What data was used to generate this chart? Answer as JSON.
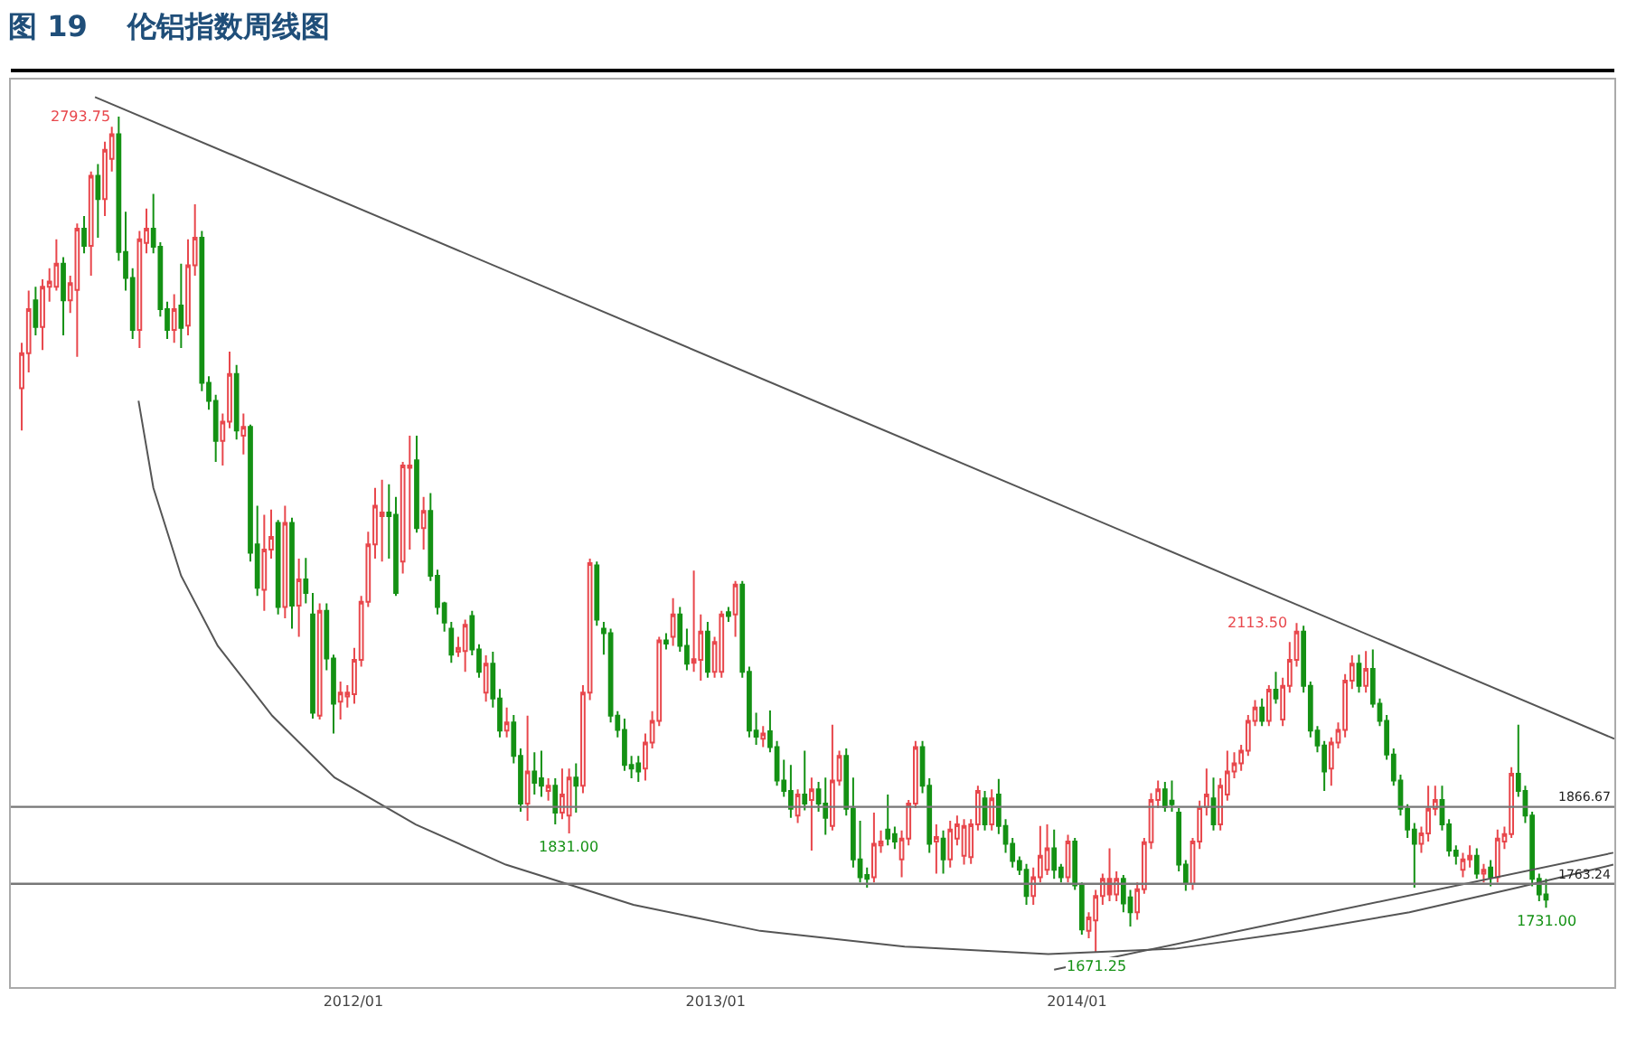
{
  "chart_data": {
    "type": "candlestick",
    "title": "图 19    伦铝指数周线图",
    "x": [
      "2011-01-31",
      "2011-02-07",
      "2011-02-14",
      "2011-02-21",
      "2011-02-28",
      "2011-03-07",
      "2011-03-14",
      "2011-03-21",
      "2011-03-28",
      "2011-04-04",
      "2011-04-11",
      "2011-04-18",
      "2011-04-25",
      "2011-05-02",
      "2011-05-09",
      "2011-05-16",
      "2011-05-23",
      "2011-05-30",
      "2011-06-06",
      "2011-06-13",
      "2011-06-20",
      "2011-06-27",
      "2011-07-04",
      "2011-07-11",
      "2011-07-18",
      "2011-07-25",
      "2011-08-01",
      "2011-08-08",
      "2011-08-15",
      "2011-08-22",
      "2011-08-29",
      "2011-09-05",
      "2011-09-12",
      "2011-09-19",
      "2011-09-26",
      "2011-10-03",
      "2011-10-10",
      "2011-10-17",
      "2011-10-24",
      "2011-10-31",
      "2011-11-07",
      "2011-11-14",
      "2011-11-21",
      "2011-11-28",
      "2011-12-05",
      "2011-12-12",
      "2011-12-19",
      "2011-12-26",
      "2012-01-02",
      "2012-01-09",
      "2012-01-16",
      "2012-01-23",
      "2012-01-30",
      "2012-02-06",
      "2012-02-13",
      "2012-02-20",
      "2012-02-27",
      "2012-03-05",
      "2012-03-12",
      "2012-03-19",
      "2012-03-26",
      "2012-04-02",
      "2012-04-09",
      "2012-04-16",
      "2012-04-23",
      "2012-04-30",
      "2012-05-07",
      "2012-05-14",
      "2012-05-21",
      "2012-05-28",
      "2012-06-04",
      "2012-06-11",
      "2012-06-18",
      "2012-06-25",
      "2012-07-02",
      "2012-07-09",
      "2012-07-16",
      "2012-07-23",
      "2012-07-30",
      "2012-08-06",
      "2012-08-13",
      "2012-08-20",
      "2012-08-27",
      "2012-09-03",
      "2012-09-10",
      "2012-09-17",
      "2012-09-24",
      "2012-10-01",
      "2012-10-08",
      "2012-10-15",
      "2012-10-22",
      "2012-10-29",
      "2012-11-05",
      "2012-11-12",
      "2012-11-19",
      "2012-11-26",
      "2012-12-03",
      "2012-12-10",
      "2012-12-17",
      "2012-12-24",
      "2012-12-31",
      "2013-01-07",
      "2013-01-14",
      "2013-01-21",
      "2013-01-28",
      "2013-02-04",
      "2013-02-11",
      "2013-02-18",
      "2013-02-25",
      "2013-03-04",
      "2013-03-11",
      "2013-03-18",
      "2013-03-25",
      "2013-04-01",
      "2013-04-08",
      "2013-04-15",
      "2013-04-22",
      "2013-04-29",
      "2013-05-06",
      "2013-05-13",
      "2013-05-20",
      "2013-05-27",
      "2013-06-03",
      "2013-06-10",
      "2013-06-17",
      "2013-06-24",
      "2013-07-01",
      "2013-07-08",
      "2013-07-15",
      "2013-07-22",
      "2013-07-29",
      "2013-08-05",
      "2013-08-12",
      "2013-08-19",
      "2013-08-26",
      "2013-09-02",
      "2013-09-09",
      "2013-09-16",
      "2013-09-23",
      "2013-09-30",
      "2013-10-07",
      "2013-10-14",
      "2013-10-21",
      "2013-10-28",
      "2013-11-04",
      "2013-11-11",
      "2013-11-18",
      "2013-11-25",
      "2013-12-02",
      "2013-12-09",
      "2013-12-16",
      "2013-12-23",
      "2013-12-30",
      "2014-01-06",
      "2014-01-13",
      "2014-01-20",
      "2014-01-27",
      "2014-02-03",
      "2014-02-10",
      "2014-02-17",
      "2014-02-24",
      "2014-03-03",
      "2014-03-10",
      "2014-03-17",
      "2014-03-24",
      "2014-03-31",
      "2014-04-07",
      "2014-04-14",
      "2014-04-21",
      "2014-04-28",
      "2014-05-05",
      "2014-05-12",
      "2014-05-19",
      "2014-05-26",
      "2014-06-02",
      "2014-06-09",
      "2014-06-16",
      "2014-06-23",
      "2014-06-30",
      "2014-07-07",
      "2014-07-14",
      "2014-07-21",
      "2014-07-28",
      "2014-08-04",
      "2014-08-11",
      "2014-08-18",
      "2014-08-25",
      "2014-09-01",
      "2014-09-08",
      "2014-09-15",
      "2014-09-22",
      "2014-09-29",
      "2014-10-06",
      "2014-10-13",
      "2014-10-20",
      "2014-10-27",
      "2014-11-03",
      "2014-11-10",
      "2014-11-17",
      "2014-11-24",
      "2014-12-01",
      "2014-12-08",
      "2014-12-15",
      "2014-12-22",
      "2014-12-29",
      "2015-01-05",
      "2015-01-12",
      "2015-01-19",
      "2015-01-26",
      "2015-02-02",
      "2015-02-09",
      "2015-02-16",
      "2015-02-23",
      "2015-03-02",
      "2015-03-09",
      "2015-03-16",
      "2015-03-23",
      "2015-03-30",
      "2015-04-06",
      "2015-04-13",
      "2015-04-20"
    ],
    "ohlc": [
      [
        2429,
        2490,
        2372,
        2476
      ],
      [
        2476,
        2560,
        2450,
        2535
      ],
      [
        2547,
        2565,
        2500,
        2511
      ],
      [
        2511,
        2575,
        2480,
        2565
      ],
      [
        2565,
        2590,
        2545,
        2572
      ],
      [
        2565,
        2629,
        2560,
        2596
      ],
      [
        2596,
        2605,
        2500,
        2547
      ],
      [
        2547,
        2580,
        2530,
        2570
      ],
      [
        2561,
        2650,
        2471,
        2643
      ],
      [
        2643,
        2660,
        2610,
        2620
      ],
      [
        2620,
        2720,
        2580,
        2714
      ],
      [
        2714,
        2730,
        2631,
        2683
      ],
      [
        2683,
        2760,
        2660,
        2749
      ],
      [
        2737,
        2780,
        2720,
        2770
      ],
      [
        2770,
        2793.75,
        2600,
        2612
      ],
      [
        2612,
        2666,
        2560,
        2577
      ],
      [
        2577,
        2590,
        2495,
        2507
      ],
      [
        2507,
        2640,
        2483,
        2629
      ],
      [
        2624,
        2670,
        2610,
        2643
      ],
      [
        2643,
        2690,
        2610,
        2619
      ],
      [
        2619,
        2625,
        2525,
        2535
      ],
      [
        2535,
        2545,
        2495,
        2507
      ],
      [
        2507,
        2555,
        2490,
        2535
      ],
      [
        2540,
        2596,
        2483,
        2510
      ],
      [
        2513,
        2629,
        2500,
        2594
      ],
      [
        2594,
        2676,
        2580,
        2631
      ],
      [
        2631,
        2640,
        2425,
        2436
      ],
      [
        2436,
        2445,
        2400,
        2412
      ],
      [
        2412,
        2420,
        2330,
        2358
      ],
      [
        2358,
        2395,
        2325,
        2384
      ],
      [
        2384,
        2478,
        2375,
        2448
      ],
      [
        2448,
        2460,
        2360,
        2372
      ],
      [
        2365,
        2395,
        2340,
        2377
      ],
      [
        2377,
        2380,
        2196,
        2208
      ],
      [
        2219,
        2271,
        2150,
        2161
      ],
      [
        2158,
        2259,
        2130,
        2212
      ],
      [
        2212,
        2266,
        2200,
        2229
      ],
      [
        2248,
        2252,
        2125,
        2135
      ],
      [
        2135,
        2271,
        2120,
        2248
      ],
      [
        2248,
        2255,
        2106,
        2137
      ],
      [
        2137,
        2200,
        2095,
        2172
      ],
      [
        2172,
        2201,
        2140,
        2154
      ],
      [
        2125,
        2154,
        1985,
        1993
      ],
      [
        1989,
        2140,
        1984,
        2130
      ],
      [
        2130,
        2140,
        2050,
        2066
      ],
      [
        2066,
        2071,
        1965,
        2005
      ],
      [
        2008,
        2035,
        1984,
        2020
      ],
      [
        2015,
        2030,
        2000,
        2020
      ],
      [
        2018,
        2080,
        2005,
        2064
      ],
      [
        2064,
        2150,
        2055,
        2142
      ],
      [
        2142,
        2236,
        2135,
        2219
      ],
      [
        2219,
        2295,
        2200,
        2271
      ],
      [
        2257,
        2306,
        2196,
        2262
      ],
      [
        2262,
        2300,
        2200,
        2257
      ],
      [
        2259,
        2283,
        2150,
        2154
      ],
      [
        2196,
        2330,
        2180,
        2325
      ],
      [
        2322,
        2365,
        2212,
        2325
      ],
      [
        2332,
        2365,
        2235,
        2241
      ],
      [
        2241,
        2283,
        2212,
        2264
      ],
      [
        2264,
        2288,
        2170,
        2177
      ],
      [
        2177,
        2185,
        2125,
        2135
      ],
      [
        2140,
        2142,
        2102,
        2114
      ],
      [
        2106,
        2115,
        2060,
        2071
      ],
      [
        2075,
        2095,
        2068,
        2080
      ],
      [
        2076,
        2118,
        2048,
        2111
      ],
      [
        2123,
        2130,
        2070,
        2078
      ],
      [
        2078,
        2085,
        2040,
        2048
      ],
      [
        2020,
        2070,
        2008,
        2059
      ],
      [
        2059,
        2075,
        2000,
        2012
      ],
      [
        2012,
        2025,
        1960,
        1969
      ],
      [
        1969,
        2000,
        1960,
        1980
      ],
      [
        1980,
        1990,
        1925,
        1935
      ],
      [
        1935,
        1945,
        1860,
        1871
      ],
      [
        1871,
        1989,
        1848,
        1914
      ],
      [
        1914,
        1940,
        1883,
        1899
      ],
      [
        1905,
        1942,
        1880,
        1895
      ],
      [
        1888,
        1905,
        1875,
        1895
      ],
      [
        1895,
        1905,
        1843,
        1859
      ],
      [
        1859,
        1918,
        1850,
        1883
      ],
      [
        1855,
        1918,
        1831,
        1906
      ],
      [
        1906,
        1925,
        1859,
        1895
      ],
      [
        1895,
        2030,
        1885,
        2020
      ],
      [
        2020,
        2200,
        2010,
        2194
      ],
      [
        2191,
        2196,
        2110,
        2118
      ],
      [
        2106,
        2115,
        2071,
        2100
      ],
      [
        2100,
        2106,
        1980,
        1989
      ],
      [
        1989,
        1995,
        1960,
        1970
      ],
      [
        1970,
        1985,
        1915,
        1923
      ],
      [
        1923,
        1935,
        1905,
        1918
      ],
      [
        1925,
        1935,
        1900,
        1914
      ],
      [
        1918,
        1965,
        1902,
        1953
      ],
      [
        1953,
        1995,
        1945,
        1982
      ],
      [
        1982,
        2095,
        1975,
        2090
      ],
      [
        2090,
        2100,
        2078,
        2086
      ],
      [
        2095,
        2147,
        2083,
        2125
      ],
      [
        2125,
        2135,
        2075,
        2083
      ],
      [
        2083,
        2106,
        2050,
        2059
      ],
      [
        2060,
        2184,
        2048,
        2065
      ],
      [
        2064,
        2125,
        2036,
        2102
      ],
      [
        2102,
        2115,
        2040,
        2048
      ],
      [
        2048,
        2095,
        2040,
        2088
      ],
      [
        2048,
        2130,
        2040,
        2125
      ],
      [
        2128,
        2135,
        2115,
        2123
      ],
      [
        2125,
        2170,
        2095,
        2165
      ],
      [
        2165,
        2170,
        2040,
        2048
      ],
      [
        2048,
        2055,
        1960,
        1969
      ],
      [
        1969,
        1993,
        1950,
        1961
      ],
      [
        1958,
        1975,
        1947,
        1965
      ],
      [
        1968,
        1996,
        1940,
        1947
      ],
      [
        1947,
        1955,
        1895,
        1902
      ],
      [
        1902,
        1930,
        1880,
        1888
      ],
      [
        1888,
        1923,
        1852,
        1864
      ],
      [
        1855,
        1890,
        1845,
        1883
      ],
      [
        1883,
        1942,
        1862,
        1871
      ],
      [
        1876,
        1906,
        1808,
        1890
      ],
      [
        1890,
        1900,
        1860,
        1871
      ],
      [
        1871,
        1906,
        1829,
        1852
      ],
      [
        1841,
        1977,
        1835,
        1902
      ],
      [
        1902,
        1942,
        1895,
        1935
      ],
      [
        1935,
        1945,
        1855,
        1864
      ],
      [
        1864,
        1906,
        1785,
        1796
      ],
      [
        1796,
        1848,
        1765,
        1772
      ],
      [
        1775,
        1785,
        1758,
        1770
      ],
      [
        1772,
        1859,
        1765,
        1817
      ],
      [
        1815,
        1835,
        1805,
        1820
      ],
      [
        1836,
        1883,
        1815,
        1824
      ],
      [
        1830,
        1840,
        1810,
        1820
      ],
      [
        1796,
        1835,
        1772,
        1824
      ],
      [
        1824,
        1876,
        1815,
        1871
      ],
      [
        1871,
        1955,
        1865,
        1947
      ],
      [
        1947,
        1955,
        1885,
        1895
      ],
      [
        1895,
        1905,
        1805,
        1817
      ],
      [
        1820,
        1843,
        1777,
        1826
      ],
      [
        1824,
        1835,
        1777,
        1796
      ],
      [
        1796,
        1848,
        1785,
        1836
      ],
      [
        1824,
        1855,
        1815,
        1843
      ],
      [
        1801,
        1850,
        1789,
        1841
      ],
      [
        1799,
        1850,
        1790,
        1843
      ],
      [
        1843,
        1895,
        1835,
        1888
      ],
      [
        1878,
        1888,
        1835,
        1843
      ],
      [
        1843,
        1890,
        1835,
        1878
      ],
      [
        1883,
        1904,
        1830,
        1841
      ],
      [
        1841,
        1850,
        1805,
        1817
      ],
      [
        1817,
        1825,
        1785,
        1794
      ],
      [
        1794,
        1800,
        1775,
        1782
      ],
      [
        1782,
        1790,
        1735,
        1747
      ],
      [
        1747,
        1785,
        1735,
        1772
      ],
      [
        1772,
        1841,
        1765,
        1801
      ],
      [
        1782,
        1843,
        1775,
        1811
      ],
      [
        1811,
        1836,
        1770,
        1782
      ],
      [
        1785,
        1790,
        1765,
        1772
      ],
      [
        1772,
        1829,
        1765,
        1820
      ],
      [
        1820,
        1825,
        1755,
        1761
      ],
      [
        1761,
        1765,
        1695,
        1702
      ],
      [
        1700,
        1725,
        1690,
        1718
      ],
      [
        1714,
        1755,
        1671.25,
        1747
      ],
      [
        1747,
        1777,
        1735,
        1770
      ],
      [
        1770,
        1811,
        1740,
        1749
      ],
      [
        1749,
        1780,
        1740,
        1770
      ],
      [
        1770,
        1775,
        1725,
        1737
      ],
      [
        1745,
        1755,
        1706,
        1725
      ],
      [
        1725,
        1765,
        1715,
        1756
      ],
      [
        1756,
        1825,
        1750,
        1819
      ],
      [
        1819,
        1885,
        1810,
        1876
      ],
      [
        1876,
        1902,
        1865,
        1890
      ],
      [
        1890,
        1900,
        1860,
        1866
      ],
      [
        1875,
        1902,
        1860,
        1870
      ],
      [
        1859,
        1865,
        1780,
        1789
      ],
      [
        1789,
        1795,
        1754,
        1763
      ],
      [
        1763,
        1825,
        1755,
        1820
      ],
      [
        1820,
        1875,
        1810,
        1866
      ],
      [
        1866,
        1918,
        1855,
        1883
      ],
      [
        1878,
        1906,
        1835,
        1843
      ],
      [
        1843,
        1905,
        1835,
        1895
      ],
      [
        1883,
        1942,
        1875,
        1914
      ],
      [
        1914,
        1940,
        1905,
        1925
      ],
      [
        1925,
        1950,
        1915,
        1942
      ],
      [
        1942,
        1990,
        1935,
        1982
      ],
      [
        1982,
        2010,
        1975,
        2000
      ],
      [
        2000,
        2012,
        1975,
        1982
      ],
      [
        1982,
        2030,
        1975,
        2024
      ],
      [
        2024,
        2048,
        2005,
        2012
      ],
      [
        1984,
        2040,
        1975,
        2029
      ],
      [
        2029,
        2088,
        2020,
        2064
      ],
      [
        2064,
        2113.5,
        2055,
        2102
      ],
      [
        2102,
        2110,
        2020,
        2029
      ],
      [
        2029,
        2035,
        1960,
        1969
      ],
      [
        1969,
        1975,
        1940,
        1949
      ],
      [
        1949,
        1955,
        1888,
        1914
      ],
      [
        1918,
        1960,
        1895,
        1953
      ],
      [
        1953,
        1980,
        1945,
        1970
      ],
      [
        1970,
        2045,
        1960,
        2036
      ],
      [
        2036,
        2070,
        2025,
        2059
      ],
      [
        2059,
        2071,
        2020,
        2029
      ],
      [
        2029,
        2076,
        2020,
        2052
      ],
      [
        2052,
        2078,
        2000,
        2005
      ],
      [
        2005,
        2012,
        1975,
        1982
      ],
      [
        1982,
        1990,
        1930,
        1937
      ],
      [
        1937,
        1945,
        1895,
        1902
      ],
      [
        1902,
        1910,
        1855,
        1864
      ],
      [
        1864,
        1870,
        1825,
        1836
      ],
      [
        1836,
        1845,
        1758,
        1817
      ],
      [
        1817,
        1840,
        1805,
        1831
      ],
      [
        1831,
        1895,
        1820,
        1864
      ],
      [
        1864,
        1895,
        1855,
        1876
      ],
      [
        1876,
        1895,
        1835,
        1843
      ],
      [
        1843,
        1850,
        1800,
        1808
      ],
      [
        1808,
        1815,
        1789,
        1801
      ],
      [
        1782,
        1805,
        1772,
        1796
      ],
      [
        1796,
        1815,
        1785,
        1801
      ],
      [
        1801,
        1811,
        1770,
        1777
      ],
      [
        1777,
        1790,
        1765,
        1782
      ],
      [
        1785,
        1795,
        1760,
        1772
      ],
      [
        1772,
        1836,
        1765,
        1824
      ],
      [
        1820,
        1840,
        1810,
        1830
      ],
      [
        1830,
        1920,
        1825,
        1911
      ],
      [
        1911,
        1977,
        1880,
        1888
      ],
      [
        1888,
        1895,
        1845,
        1855
      ],
      [
        1855,
        1860,
        1760,
        1770
      ],
      [
        1770,
        1777,
        1740,
        1749
      ],
      [
        1749,
        1770,
        1731,
        1742
      ]
    ],
    "colors": [
      "#e8474c",
      "#e8474c",
      "#149114",
      "#e8474c",
      "#e8474c",
      "#e8474c",
      "#149114",
      "#e8474c",
      "#e8474c",
      "#149114",
      "#e8474c",
      "#149114",
      "#e8474c",
      "#e8474c",
      "#149114",
      "#149114",
      "#149114",
      "#e8474c",
      "#e8474c",
      "#149114",
      "#149114",
      "#149114",
      "#e8474c",
      "#149114",
      "#e8474c",
      "#e8474c",
      "#149114",
      "#149114",
      "#149114",
      "#e8474c",
      "#e8474c",
      "#149114",
      "#e8474c",
      "#149114",
      "#149114",
      "#e8474c",
      "#e8474c",
      "#149114",
      "#e8474c",
      "#149114",
      "#e8474c",
      "#149114",
      "#149114",
      "#e8474c",
      "#149114",
      "#149114",
      "#e8474c",
      "#e8474c",
      "#e8474c",
      "#e8474c",
      "#e8474c",
      "#e8474c",
      "#e8474c",
      "#149114",
      "#149114",
      "#e8474c",
      "#e8474c",
      "#149114",
      "#e8474c",
      "#149114",
      "#149114",
      "#149114",
      "#149114",
      "#e8474c",
      "#e8474c",
      "#149114",
      "#149114",
      "#e8474c",
      "#149114",
      "#149114",
      "#e8474c",
      "#149114",
      "#149114",
      "#e8474c",
      "#149114",
      "#149114",
      "#e8474c",
      "#149114",
      "#e8474c",
      "#e8474c",
      "#149114",
      "#e8474c",
      "#e8474c",
      "#149114",
      "#149114",
      "#149114",
      "#149114",
      "#149114",
      "#149114",
      "#149114",
      "#e8474c",
      "#e8474c",
      "#e8474c",
      "#149114",
      "#e8474c",
      "#149114",
      "#149114",
      "#e8474c",
      "#e8474c",
      "#149114",
      "#e8474c",
      "#e8474c",
      "#149114",
      "#e8474c",
      "#149114",
      "#149114",
      "#149114",
      "#e8474c",
      "#149114",
      "#149114",
      "#149114",
      "#149114",
      "#e8474c",
      "#149114",
      "#e8474c",
      "#149114",
      "#149114",
      "#e8474c",
      "#e8474c",
      "#149114",
      "#149114",
      "#149114",
      "#149114",
      "#e8474c",
      "#e8474c",
      "#149114",
      "#149114",
      "#e8474c",
      "#e8474c",
      "#e8474c",
      "#149114",
      "#149114",
      "#e8474c",
      "#149114",
      "#e8474c",
      "#e8474c",
      "#e8474c",
      "#e8474c",
      "#e8474c",
      "#149114",
      "#e8474c",
      "#149114",
      "#149114",
      "#149114",
      "#149114",
      "#149114",
      "#e8474c",
      "#e8474c",
      "#e8474c",
      "#149114",
      "#149114",
      "#e8474c",
      "#149114",
      "#149114",
      "#e8474c",
      "#e8474c",
      "#e8474c",
      "#e8474c",
      "#e8474c",
      "#149114",
      "#149114",
      "#e8474c",
      "#e8474c",
      "#e8474c",
      "#e8474c",
      "#149114",
      "#149114",
      "#149114",
      "#149114",
      "#e8474c",
      "#e8474c",
      "#e8474c",
      "#149114",
      "#e8474c",
      "#e8474c",
      "#e8474c",
      "#e8474c",
      "#e8474c",
      "#e8474c",
      "#149114",
      "#e8474c",
      "#149114",
      "#e8474c",
      "#e8474c",
      "#e8474c",
      "#149114",
      "#149114",
      "#149114",
      "#149114",
      "#e8474c",
      "#e8474c",
      "#e8474c",
      "#e8474c",
      "#149114",
      "#e8474c",
      "#149114",
      "#149114",
      "#149114",
      "#149114",
      "#149114",
      "#149114",
      "#149114",
      "#e8474c",
      "#e8474c",
      "#e8474c",
      "#149114",
      "#149114",
      "#149114",
      "#e8474c",
      "#e8474c",
      "#149114",
      "#e8474c",
      "#149114",
      "#e8474c",
      "#e8474c",
      "#e8474c",
      "#149114",
      "#149114",
      "#149114",
      "#149114",
      "#149114"
    ],
    "series": [
      {
        "type": "line",
        "color": "#555555",
        "x": [
          "2011-04-15",
          "2015-06-28"
        ],
        "values": [
          2820,
          1958
        ]
      },
      {
        "type": "line",
        "color": "#555555",
        "x": [
          "2011-05-29",
          "2011-06-13",
          "2011-07-11",
          "2011-08-17",
          "2011-10-11",
          "2011-12-13",
          "2012-03-04",
          "2012-06-03",
          "2012-10-10",
          "2013-02-15",
          "2013-07-11",
          "2013-12-03",
          "2014-04-10",
          "2014-08-16",
          "2014-12-03",
          "2015-03-22",
          "2015-06-27"
        ],
        "values": [
          2412,
          2295,
          2177,
          2083,
          1989,
          1906,
          1843,
          1789,
          1735,
          1700,
          1679,
          1669,
          1676,
          1700,
          1725,
          1758,
          1789
        ]
      },
      {
        "type": "line",
        "color": "#555555",
        "x": [
          "2013-12-09",
          "2015-06-27"
        ],
        "values": [
          1648,
          1805
        ]
      }
    ],
    "ref_lines": [
      {
        "axis": "y",
        "value": 1866.67,
        "label": "1866.67",
        "color": "#777777"
      },
      {
        "axis": "y",
        "value": 1763.24,
        "label": "1763.24",
        "color": "#777777"
      }
    ],
    "annotations": [
      {
        "text": "2793.75",
        "x": "2011-05-09",
        "y": 2793.75
      },
      {
        "text": "1831.00",
        "x": "2012-08-06",
        "y": 1831
      },
      {
        "text": "1671.25",
        "x": "2014-01-20",
        "y": 1671.25
      },
      {
        "text": "2113.50",
        "x": "2014-08-11",
        "y": 2113.5
      },
      {
        "text": "1731.00",
        "x": "2015-04-20",
        "y": 1731
      }
    ],
    "xlim": [
      "2011-01-20",
      "2015-06-28"
    ],
    "xticks": [
      {
        "value": "2012-01-01",
        "label": "2012/01"
      },
      {
        "value": "2013-01-01",
        "label": "2013/01"
      },
      {
        "value": "2014-01-01",
        "label": "2014/01"
      }
    ],
    "tick_labels": "x"
  }
}
